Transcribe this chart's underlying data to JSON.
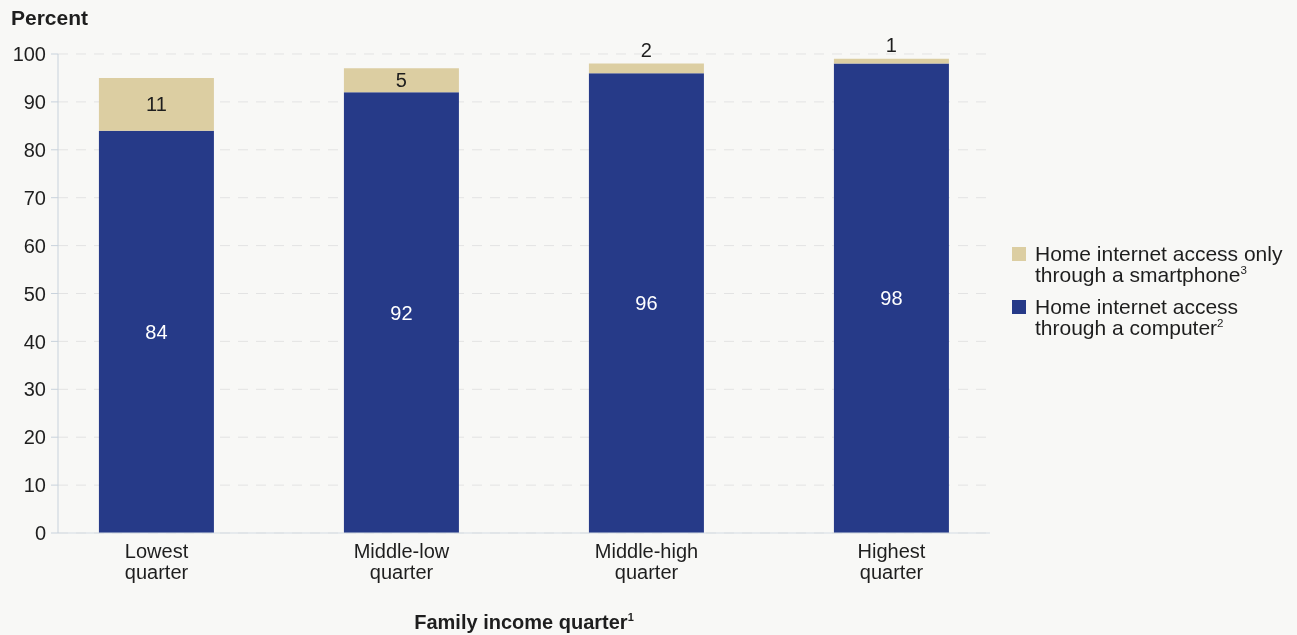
{
  "chart_data": {
    "type": "bar",
    "categories": [
      "Lowest quarter",
      "Middle-low quarter",
      "Middle-high quarter",
      "Highest quarter"
    ],
    "series": [
      {
        "name": "Home internet access through a computer$^{2}$",
        "color": "#263a88",
        "values": [
          84,
          92,
          96,
          98
        ]
      },
      {
        "name": "Home internet access only through a smartphone$^{3}$",
        "color": "#dccea2",
        "values": [
          11,
          5,
          2,
          1
        ]
      }
    ],
    "stacked": true,
    "ylim": [
      0,
      100
    ],
    "yticks": [
      0,
      10,
      20,
      30,
      40,
      50,
      60,
      70,
      80,
      90,
      100
    ],
    "ylabel": "Percent",
    "xlabel": "Family income quarter$^{1}$",
    "grid": "y",
    "legend": "right",
    "data_labels": true
  }
}
